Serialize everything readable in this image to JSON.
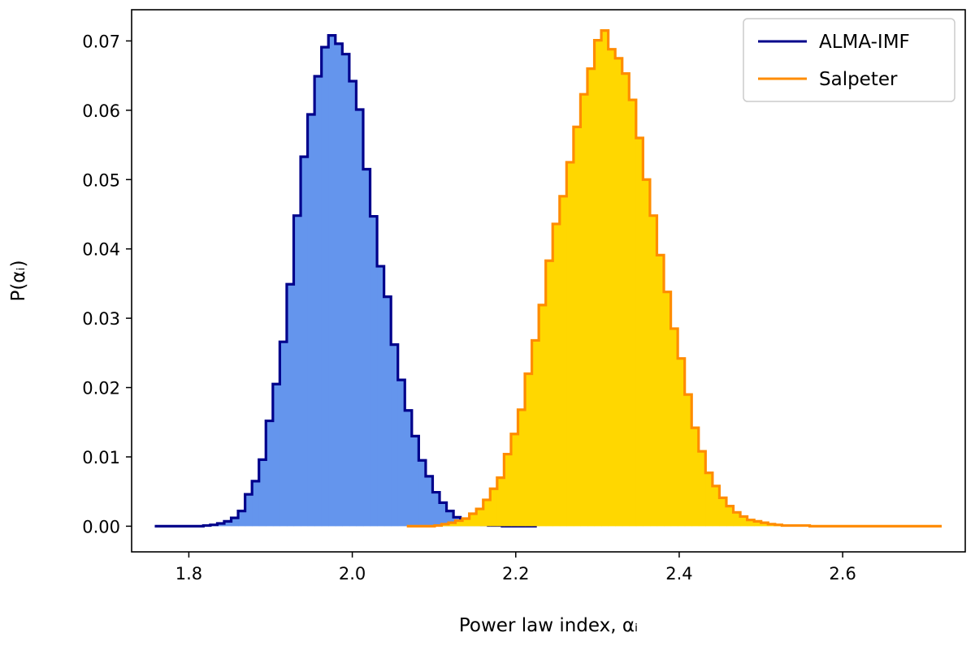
{
  "chart_data": {
    "type": "bar",
    "title": "",
    "xlabel": "Power law index,  αᵢ",
    "ylabel": "P(αᵢ)",
    "xlim": [
      1.73,
      2.75
    ],
    "ylim": [
      -0.0037,
      0.0745
    ],
    "xticks": [
      1.8,
      2.0,
      2.2,
      2.4,
      2.6
    ],
    "xtick_labels": [
      "1.8",
      "2.0",
      "2.2",
      "2.4",
      "2.6"
    ],
    "yticks": [
      0.0,
      0.01,
      0.02,
      0.03,
      0.04,
      0.05,
      0.06,
      0.07
    ],
    "ytick_labels": [
      "0.00",
      "0.01",
      "0.02",
      "0.03",
      "0.04",
      "0.05",
      "0.06",
      "0.07"
    ],
    "grid": false,
    "legend": "top-right",
    "series": [
      {
        "name": "ALMA-IMF",
        "line_color": "#00008b",
        "fill_color": "#6495ed",
        "bin_width": 0.0085,
        "bin_start": 1.7583,
        "values": [
          0,
          0,
          0,
          0,
          0,
          0,
          0,
          0.0001,
          0.0002,
          0.0004,
          0.0007,
          0.0012,
          0.0022,
          0.0046,
          0.0065,
          0.0096,
          0.0152,
          0.0205,
          0.0266,
          0.0349,
          0.0448,
          0.0533,
          0.0594,
          0.0649,
          0.0691,
          0.0708,
          0.0696,
          0.0681,
          0.0642,
          0.0601,
          0.0515,
          0.0447,
          0.0375,
          0.0331,
          0.0262,
          0.0211,
          0.0167,
          0.013,
          0.0095,
          0.0072,
          0.0049,
          0.0034,
          0.0022,
          0.0013,
          0.0008,
          0.0005,
          0.0003,
          0.0002,
          0.0001,
          0.0001,
          0,
          0,
          0,
          0,
          0
        ]
      },
      {
        "name": "Salpeter",
        "line_color": "#ff8c00",
        "fill_color": "#ffd700",
        "bin_width": 0.0085,
        "bin_start": 2.0667,
        "values": [
          0,
          0,
          0,
          0,
          0.0001,
          0.0003,
          0.0005,
          0.0008,
          0.0011,
          0.0018,
          0.0025,
          0.0038,
          0.0054,
          0.007,
          0.0104,
          0.0133,
          0.0168,
          0.022,
          0.0268,
          0.0319,
          0.0383,
          0.0436,
          0.0476,
          0.0525,
          0.0576,
          0.0623,
          0.066,
          0.0701,
          0.0715,
          0.0688,
          0.0675,
          0.0653,
          0.0615,
          0.056,
          0.05,
          0.0448,
          0.0391,
          0.0338,
          0.0285,
          0.0242,
          0.019,
          0.0142,
          0.0108,
          0.0077,
          0.0058,
          0.0041,
          0.0029,
          0.002,
          0.0014,
          0.0009,
          0.0007,
          0.0005,
          0.0003,
          0.0002,
          0.0001,
          0.0001,
          0.0001,
          0.0001,
          0,
          0,
          0,
          0,
          0,
          0,
          0,
          0,
          0,
          0,
          0,
          0,
          0,
          0,
          0,
          0,
          0,
          0,
          0
        ]
      }
    ]
  }
}
